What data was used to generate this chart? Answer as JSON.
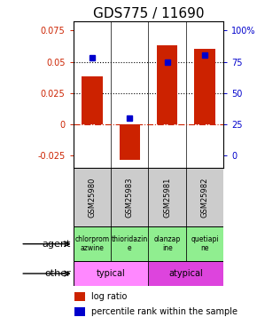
{
  "title": "GDS775 / 11690",
  "samples": [
    "GSM25980",
    "GSM25983",
    "GSM25981",
    "GSM25982"
  ],
  "log_ratios": [
    0.038,
    -0.028,
    0.063,
    0.06
  ],
  "percentile_ranks": [
    0.78,
    0.3,
    0.75,
    0.8
  ],
  "agents": [
    "chlorprom\nazwine",
    "thioridazin\ne",
    "olanzap\nine",
    "quetiapi\nne"
  ],
  "bar_color": "#cc2200",
  "dot_color": "#0000cc",
  "ylim": [
    -0.035,
    0.082
  ],
  "yticks_left": [
    -0.025,
    0,
    0.025,
    0.05,
    0.075
  ],
  "yticks_right": [
    0,
    25,
    50,
    75,
    100
  ],
  "hline_y": [
    0.025,
    0.05
  ],
  "zero_line_y": 0,
  "title_fontsize": 11,
  "left_label_color": "#cc2200",
  "right_label_color": "#0000cc",
  "green_color": "#90ee90",
  "pink_light": "#ff88ff",
  "pink_dark": "#dd44dd",
  "gray_color": "#cccccc"
}
